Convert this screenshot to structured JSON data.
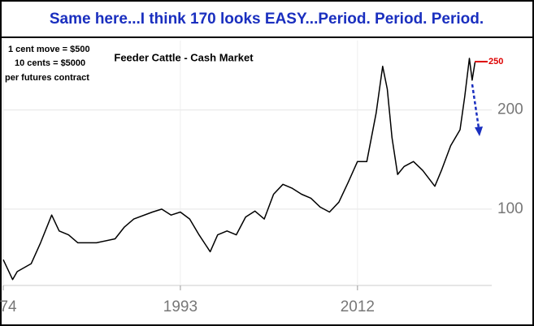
{
  "chart_data": {
    "type": "line",
    "title": "Same here...I think 170 looks EASY...Period. Period. Period.",
    "subtitle": "Feeder Cattle - Cash Market",
    "annotations": [
      "1 cent move = $500",
      "10 cents = $5000",
      "per futures contract",
      "250"
    ],
    "x": [
      1974,
      1975,
      1975.5,
      1977,
      1978,
      1979.2,
      1980,
      1981,
      1982,
      1984,
      1986,
      1987,
      1988,
      1990,
      1991,
      1992,
      1993,
      1994,
      1995,
      1996.2,
      1997,
      1998,
      1999,
      2000,
      2001,
      2002,
      2003,
      2004,
      2005,
      2006,
      2007,
      2008,
      2009,
      2010,
      2011,
      2012,
      2013,
      2014,
      2014.7,
      2015.2,
      2015.7,
      2016.3,
      2017,
      2018,
      2019,
      2020.3,
      2021,
      2022,
      2023,
      2023.5,
      2024,
      2024.3,
      2024.6
    ],
    "values": [
      49,
      29,
      37,
      45,
      66,
      94,
      78,
      74,
      66,
      66,
      70,
      82,
      90,
      97,
      100,
      94,
      97,
      90,
      74,
      57,
      74,
      78,
      74,
      92,
      98,
      90,
      115,
      125,
      121,
      115,
      111,
      102,
      97,
      107,
      127,
      148,
      148,
      197,
      244,
      221,
      172,
      135,
      143,
      148,
      139,
      123,
      139,
      164,
      180,
      213,
      252,
      230,
      248
    ],
    "color": "#000000",
    "xlim": [
      1974,
      2026.4
    ],
    "xticks": [
      {
        "value": 1974,
        "label": "74"
      },
      1993,
      2012
    ],
    "ylim": [
      23,
      270
    ],
    "yticks": [
      100,
      200
    ],
    "grid": true
  }
}
